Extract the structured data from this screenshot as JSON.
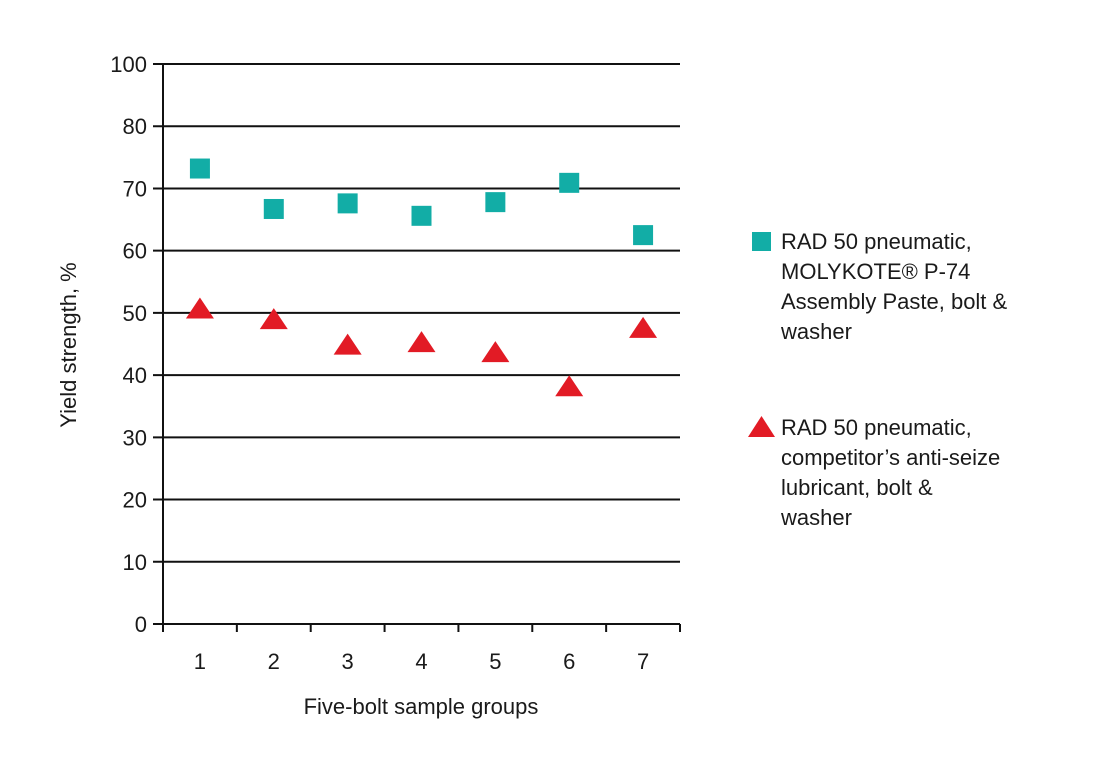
{
  "chart_data": {
    "type": "scatter",
    "title": "",
    "xlabel": "Five-bolt sample groups",
    "ylabel": "Yield strength, %",
    "categories": [
      "1",
      "2",
      "3",
      "4",
      "5",
      "6",
      "7"
    ],
    "y_tick_labels": [
      "0",
      "10",
      "20",
      "30",
      "40",
      "50",
      "60",
      "70",
      "80",
      "100"
    ],
    "ylim": [
      0,
      90
    ],
    "grid": true,
    "legend_position": "right",
    "series": [
      {
        "name": "RAD 50 pneumatic, MOLYKOTE® P-74 Assembly Paste, bolt & washer",
        "marker": "square",
        "color": "#12ADA6",
        "values": [
          73.2,
          66.7,
          67.6,
          65.6,
          67.8,
          70.9,
          62.5
        ]
      },
      {
        "name": "RAD 50 pneumatic, competitor’s anti-seize lubricant, bolt & washer",
        "marker": "triangle",
        "color": "#E21B25",
        "values": [
          50.7,
          49.0,
          44.9,
          45.3,
          43.7,
          38.2,
          47.6
        ]
      }
    ]
  },
  "legend": {
    "items": [
      {
        "lines": [
          "RAD 50 pneumatic,",
          "MOLYKOTE® P-74",
          "Assembly Paste, bolt &",
          "washer"
        ]
      },
      {
        "lines": [
          "RAD 50 pneumatic,",
          "competitor’s anti-seize",
          "lubricant, bolt &",
          "washer"
        ]
      }
    ]
  }
}
